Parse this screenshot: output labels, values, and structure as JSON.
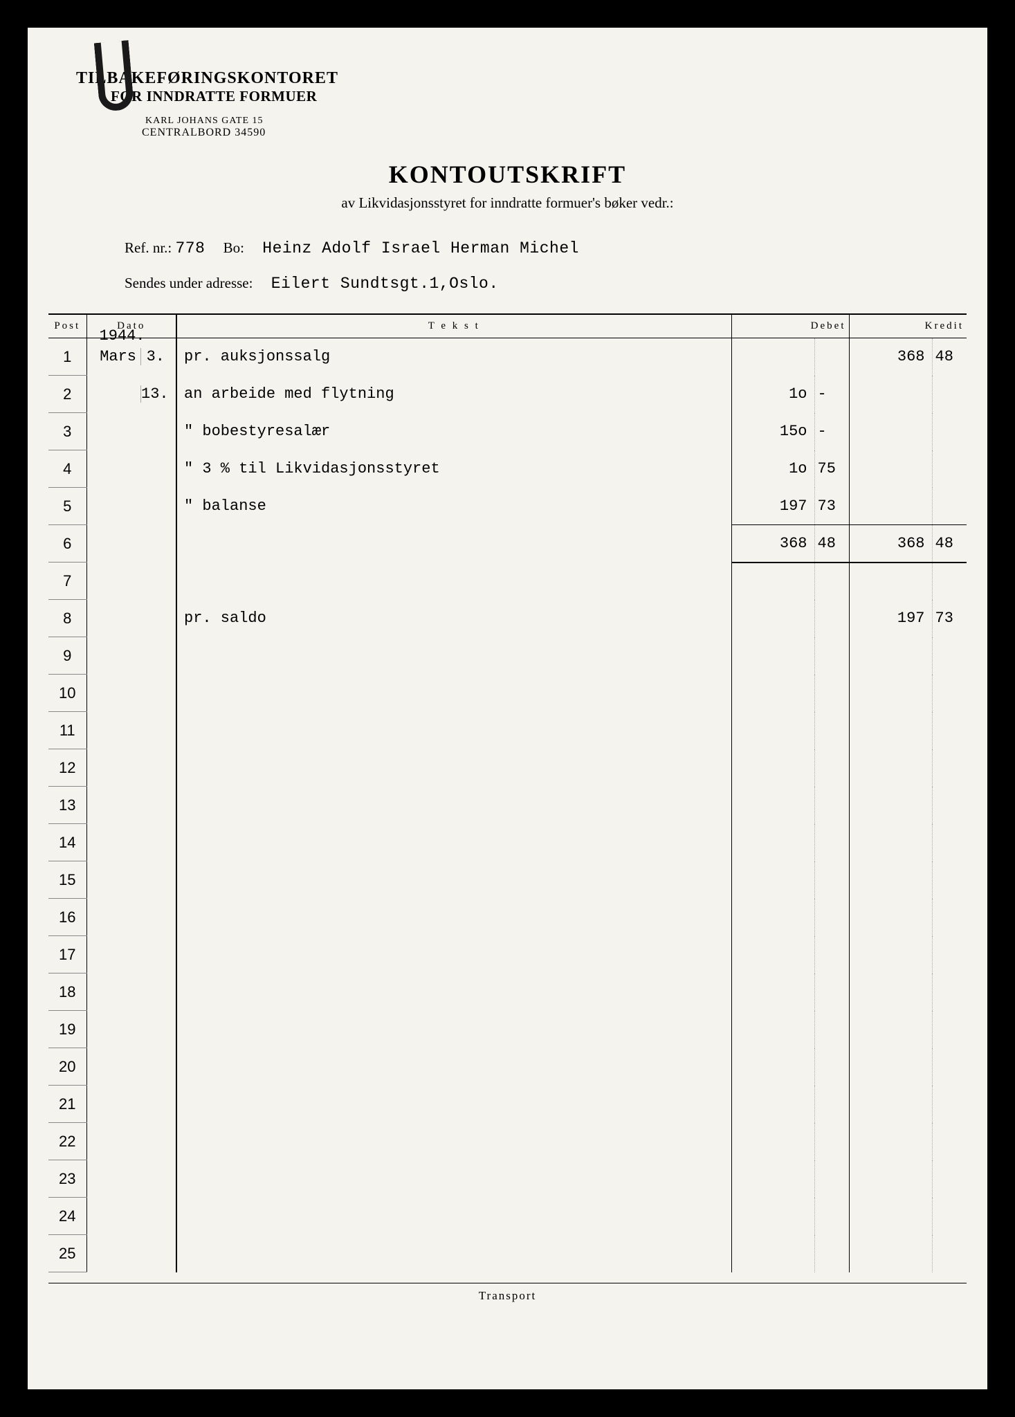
{
  "letterhead": {
    "org_line1": "TILBAKEFØRINGSKONTORET",
    "org_line2": "FOR INNDRATTE FORMUER",
    "address_line1": "KARL JOHANS GATE 15",
    "address_line2": "CENTRALBORD 34590"
  },
  "doc": {
    "title": "KONTOUTSKRIFT",
    "subtitle": "av Likvidasjonsstyret for inndratte formuer's bøker vedr.:"
  },
  "refs": {
    "ref_label": "Ref. nr.:",
    "ref_value": "778",
    "bo_label": "Bo:",
    "bo_value": "Heinz Adolf Israel Herman Michel",
    "addr_label": "Sendes under adresse:",
    "addr_value": "Eilert Sundtsgt.1,Oslo."
  },
  "table": {
    "headers": {
      "post": "Post",
      "dato": "Dato",
      "tekst": "T e k s t",
      "debet": "Debet",
      "kredit": "Kredit"
    },
    "year": "1944.",
    "rows": [
      {
        "post": "1",
        "month": "Mars",
        "day": "3.",
        "tekst": "pr. auksjonssalg",
        "debet": "",
        "debet_dec": "",
        "kredit": "368",
        "kredit_dec": "48"
      },
      {
        "post": "2",
        "month": "",
        "day": "13.",
        "tekst": "an arbeide med flytning",
        "debet": "1o",
        "debet_dec": "-",
        "kredit": "",
        "kredit_dec": ""
      },
      {
        "post": "3",
        "month": "",
        "day": "",
        "tekst": "\"  bobestyresalær",
        "debet": "15o",
        "debet_dec": "-",
        "kredit": "",
        "kredit_dec": ""
      },
      {
        "post": "4",
        "month": "",
        "day": "",
        "tekst": "\"  3 % til Likvidasjonsstyret",
        "debet": "1o",
        "debet_dec": "75",
        "kredit": "",
        "kredit_dec": ""
      },
      {
        "post": "5",
        "month": "",
        "day": "",
        "tekst": "\"  balanse",
        "debet": "197",
        "debet_dec": "73",
        "kredit": "",
        "kredit_dec": ""
      },
      {
        "post": "6",
        "month": "",
        "day": "",
        "tekst": "",
        "debet": "368",
        "debet_dec": "48",
        "kredit": "368",
        "kredit_dec": "48",
        "sum": true
      },
      {
        "post": "7",
        "month": "",
        "day": "",
        "tekst": "",
        "debet": "",
        "debet_dec": "",
        "kredit": "",
        "kredit_dec": ""
      },
      {
        "post": "8",
        "month": "",
        "day": "",
        "tekst": "pr. saldo",
        "debet": "",
        "debet_dec": "",
        "kredit": "197",
        "kredit_dec": "73"
      },
      {
        "post": "9"
      },
      {
        "post": "10"
      },
      {
        "post": "11"
      },
      {
        "post": "12"
      },
      {
        "post": "13"
      },
      {
        "post": "14"
      },
      {
        "post": "15"
      },
      {
        "post": "16"
      },
      {
        "post": "17"
      },
      {
        "post": "18"
      },
      {
        "post": "19"
      },
      {
        "post": "20"
      },
      {
        "post": "21"
      },
      {
        "post": "22"
      },
      {
        "post": "23"
      },
      {
        "post": "24"
      },
      {
        "post": "25"
      }
    ],
    "transport": "Transport"
  },
  "colors": {
    "page_bg": "#f5f3ee",
    "outer_bg": "#000000",
    "line": "#000000",
    "faint_line": "#aaaaaa"
  }
}
